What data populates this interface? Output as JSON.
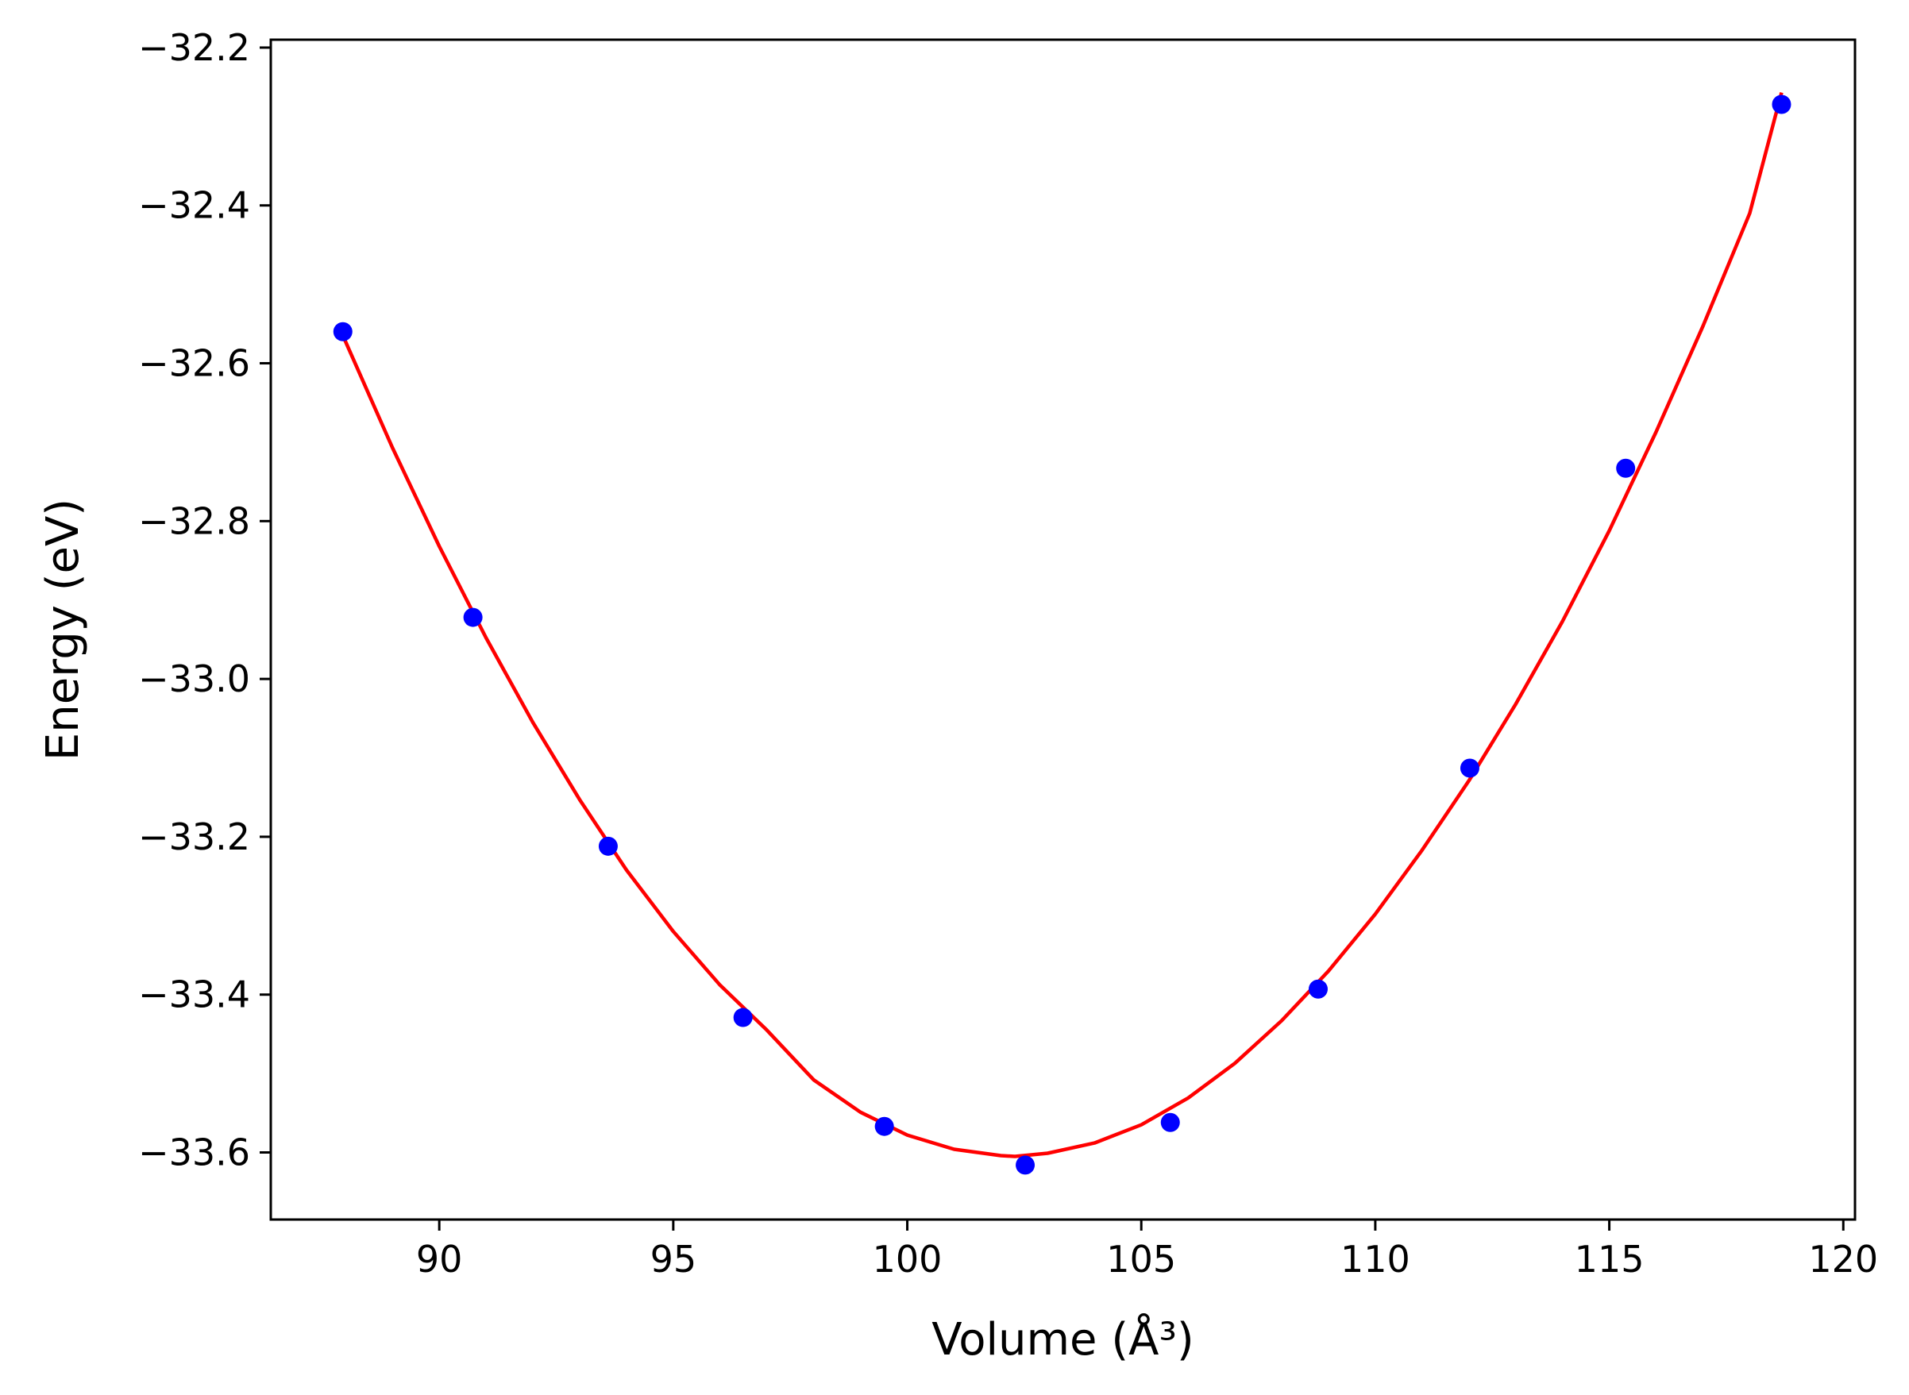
{
  "chart_data": {
    "type": "scatter",
    "xlabel": "Volume (Å³)",
    "ylabel": "Energy (eV)",
    "xlim": [
      86.4,
      120.25
    ],
    "ylim": [
      -33.685,
      -32.19
    ],
    "xticks": [
      {
        "value": 90,
        "label": "90"
      },
      {
        "value": 95,
        "label": "95"
      },
      {
        "value": 100,
        "label": "100"
      },
      {
        "value": 105,
        "label": "105"
      },
      {
        "value": 110,
        "label": "110"
      },
      {
        "value": 115,
        "label": "115"
      },
      {
        "value": 120,
        "label": "120"
      }
    ],
    "yticks": [
      {
        "value": -33.6,
        "label": "−33.6"
      },
      {
        "value": -33.4,
        "label": "−33.4"
      },
      {
        "value": -33.2,
        "label": "−33.2"
      },
      {
        "value": -33.0,
        "label": "−33.0"
      },
      {
        "value": -32.8,
        "label": "−32.8"
      },
      {
        "value": -32.6,
        "label": "−32.6"
      },
      {
        "value": -32.4,
        "label": "−32.4"
      },
      {
        "value": -32.2,
        "label": "−32.2"
      }
    ],
    "grid": false,
    "series": [
      {
        "kind": "points",
        "color": "#0000ff",
        "x": [
          87.94,
          90.72,
          93.61,
          96.49,
          99.51,
          102.52,
          105.62,
          108.78,
          112.02,
          115.35,
          118.68
        ],
        "y": [
          -32.56,
          -32.922,
          -33.212,
          -33.429,
          -33.567,
          -33.616,
          -33.562,
          -33.393,
          -33.113,
          -32.733,
          -32.272
        ]
      },
      {
        "kind": "line",
        "color": "#ff0000",
        "x": [
          87.94,
          89.0,
          90.0,
          91.0,
          92.0,
          93.0,
          94.0,
          95.0,
          96.0,
          97.0,
          98.0,
          99.0,
          100.0,
          101.0,
          102.0,
          102.3,
          103.0,
          104.0,
          105.0,
          106.0,
          107.0,
          108.0,
          109.0,
          110.0,
          111.0,
          112.0,
          113.0,
          114.0,
          115.0,
          116.0,
          117.0,
          118.0,
          118.68
        ],
        "y": [
          -32.565,
          -32.707,
          -32.832,
          -32.948,
          -33.055,
          -33.153,
          -33.242,
          -33.32,
          -33.388,
          -33.445,
          -33.508,
          -33.549,
          -33.578,
          -33.596,
          -33.604,
          -33.605,
          -33.601,
          -33.588,
          -33.565,
          -33.531,
          -33.487,
          -33.433,
          -33.37,
          -33.298,
          -33.217,
          -33.129,
          -33.032,
          -32.927,
          -32.812,
          -32.687,
          -32.553,
          -32.41,
          -32.257
        ]
      }
    ]
  }
}
